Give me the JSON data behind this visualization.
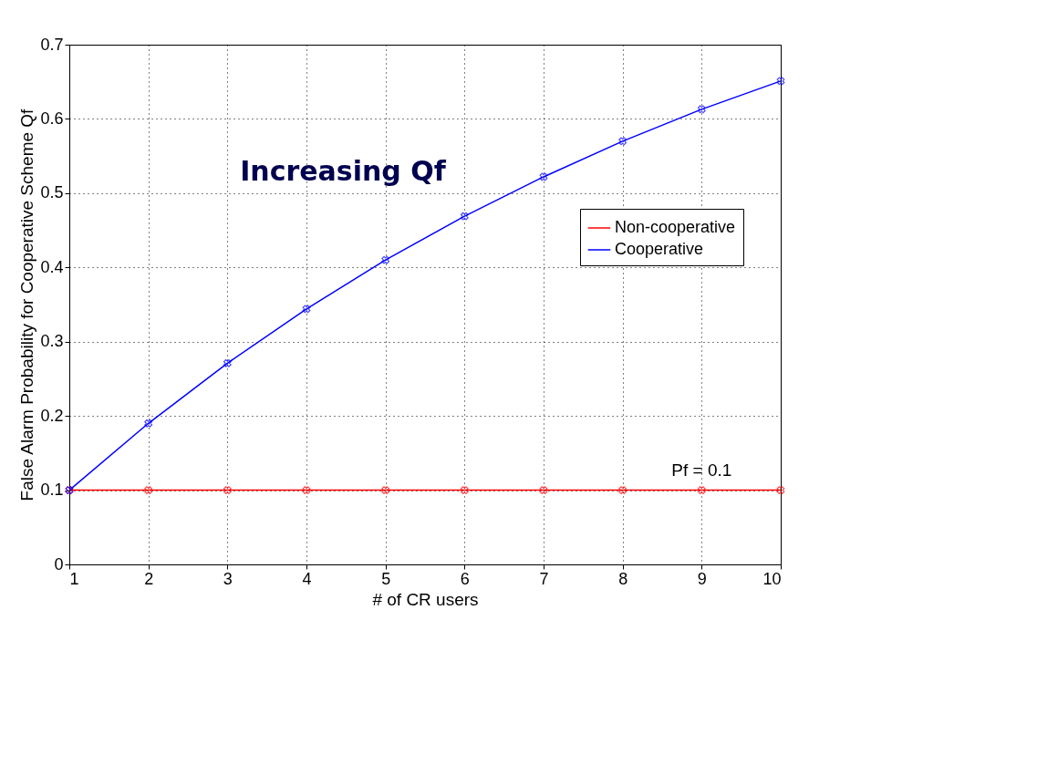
{
  "chart_data": {
    "type": "line",
    "xlabel": "# of CR users",
    "ylabel": "False Alarm Probability for Cooperative Scheme Qf",
    "x": [
      1,
      2,
      3,
      4,
      5,
      6,
      7,
      8,
      9,
      10
    ],
    "series": [
      {
        "name": "Non-cooperative",
        "color": "#ff0000",
        "values": [
          0.1,
          0.1,
          0.1,
          0.1,
          0.1,
          0.1,
          0.1,
          0.1,
          0.1,
          0.1
        ]
      },
      {
        "name": "Cooperative",
        "color": "#0000ff",
        "values": [
          0.1,
          0.19,
          0.271,
          0.344,
          0.41,
          0.469,
          0.522,
          0.57,
          0.613,
          0.651
        ]
      }
    ],
    "xlim": [
      1,
      10
    ],
    "xticks": [
      1,
      2,
      3,
      4,
      5,
      6,
      7,
      8,
      9,
      10
    ],
    "ylim": [
      0,
      0.7
    ],
    "yticks": [
      0,
      0.1,
      0.2,
      0.3,
      0.4,
      0.5,
      0.6,
      0.7
    ],
    "grid": true,
    "legend": "right",
    "marker": "cross",
    "line_style": "solid",
    "annotations": [
      "Increasing Qf",
      {
        "text": "Pf = 0.1",
        "x": 9,
        "y": 0.1
      }
    ]
  }
}
